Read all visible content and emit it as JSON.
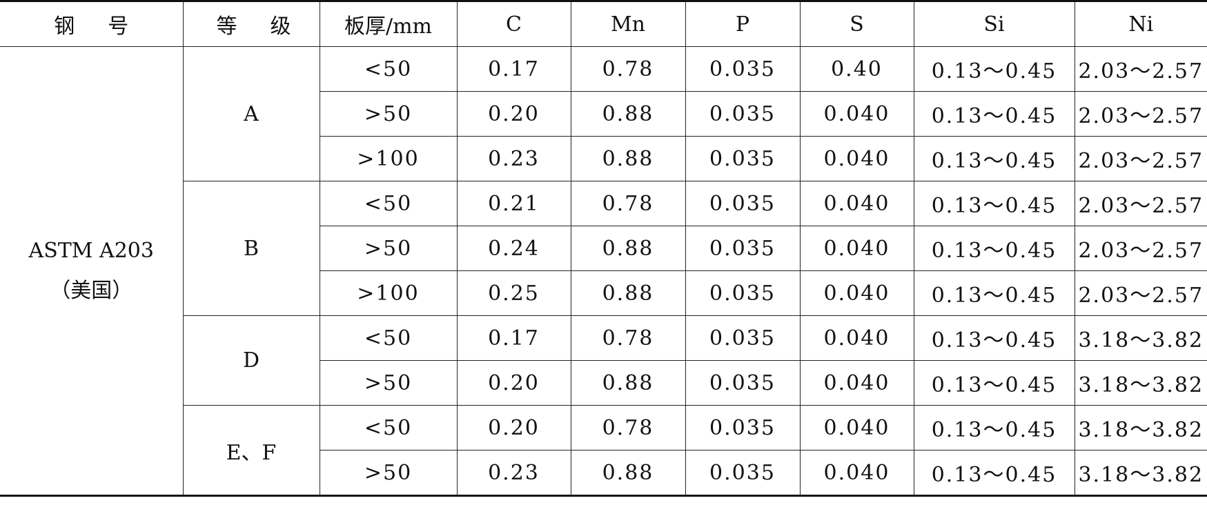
{
  "headers": {
    "steel_no": "钢号",
    "grade": "等级",
    "thickness": "板厚/mm",
    "c": "C",
    "mn": "Mn",
    "p": "P",
    "s": "S",
    "si": "Si",
    "ni": "Ni"
  },
  "steel": {
    "line1": "ASTM A203",
    "line2": "（美国）"
  },
  "grades": {
    "a": "A",
    "b": "B",
    "d": "D",
    "ef": "E、F"
  },
  "rows": [
    {
      "thickness": "<50",
      "c": "0.17",
      "mn": "0.78",
      "p": "0.035",
      "s": "0.40",
      "si": "0.13～0.45",
      "ni": "2.03～2.57"
    },
    {
      "thickness": ">50",
      "c": "0.20",
      "mn": "0.88",
      "p": "0.035",
      "s": "0.040",
      "si": "0.13～0.45",
      "ni": "2.03～2.57"
    },
    {
      "thickness": ">100",
      "c": "0.23",
      "mn": "0.88",
      "p": "0.035",
      "s": "0.040",
      "si": "0.13～0.45",
      "ni": "2.03～2.57"
    },
    {
      "thickness": "<50",
      "c": "0.21",
      "mn": "0.78",
      "p": "0.035",
      "s": "0.040",
      "si": "0.13～0.45",
      "ni": "2.03～2.57"
    },
    {
      "thickness": ">50",
      "c": "0.24",
      "mn": "0.88",
      "p": "0.035",
      "s": "0.040",
      "si": "0.13～0.45",
      "ni": "2.03～2.57"
    },
    {
      "thickness": ">100",
      "c": "0.25",
      "mn": "0.88",
      "p": "0.035",
      "s": "0.040",
      "si": "0.13～0.45",
      "ni": "2.03～2.57"
    },
    {
      "thickness": "<50",
      "c": "0.17",
      "mn": "0.78",
      "p": "0.035",
      "s": "0.040",
      "si": "0.13～0.45",
      "ni": "3.18～3.82"
    },
    {
      "thickness": ">50",
      "c": "0.20",
      "mn": "0.88",
      "p": "0.035",
      "s": "0.040",
      "si": "0.13～0.45",
      "ni": "3.18～3.82"
    },
    {
      "thickness": "<50",
      "c": "0.20",
      "mn": "0.78",
      "p": "0.035",
      "s": "0.040",
      "si": "0.13～0.45",
      "ni": "3.18～3.82"
    },
    {
      "thickness": ">50",
      "c": "0.23",
      "mn": "0.88",
      "p": "0.035",
      "s": "0.040",
      "si": "0.13～0.45",
      "ni": "3.18～3.82"
    }
  ]
}
